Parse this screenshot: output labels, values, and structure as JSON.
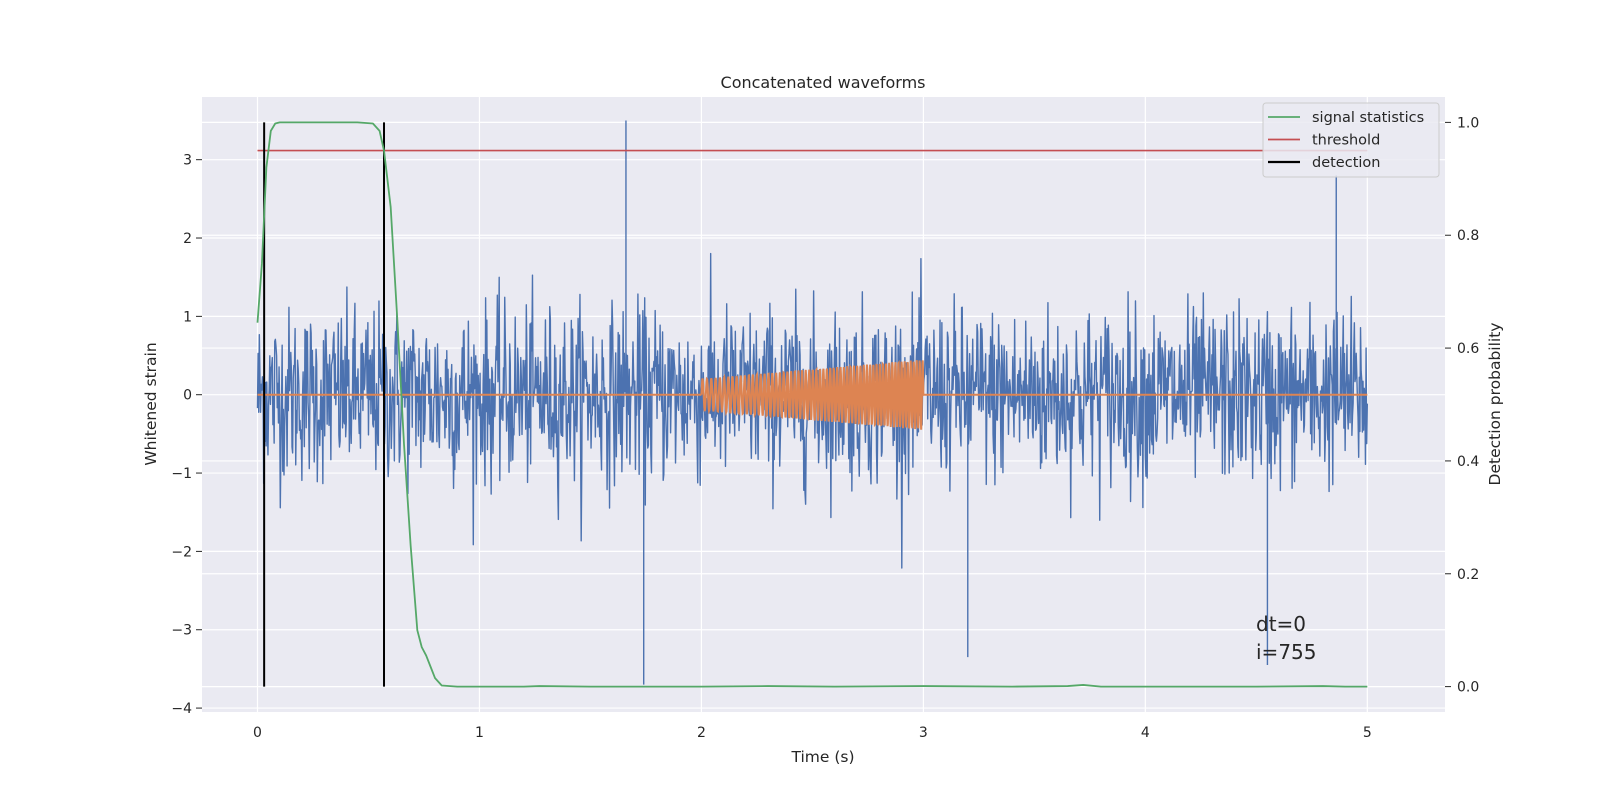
{
  "chart_data": {
    "type": "line",
    "title": "Concatenated waveforms",
    "xlabel": "Time (s)",
    "ylabel": "Whitened strain",
    "y2label": "Detection probability",
    "xlim": [
      -0.25,
      5.35
    ],
    "ylim": [
      -4.05,
      3.8
    ],
    "y2lim": [
      -0.045,
      1.045
    ],
    "xticks": [
      0,
      1,
      2,
      3,
      4,
      5
    ],
    "yticks": [
      -4,
      -3,
      -2,
      -1,
      0,
      1,
      2,
      3
    ],
    "y2ticks": [
      0.0,
      0.2,
      0.4,
      0.6,
      0.8,
      1.0
    ],
    "y2ticklabels": [
      "0.0",
      "0.2",
      "0.4",
      "0.6",
      "0.8",
      "1.0"
    ],
    "grid": true,
    "legend_position": "top-right",
    "legend": [
      {
        "label": "signal statistics",
        "color": "#55a868"
      },
      {
        "label": "threshold",
        "color": "#c44e52"
      },
      {
        "label": "detection",
        "color": "#000000"
      }
    ],
    "colors": {
      "noise": "#4c72b0",
      "injected": "#dd8452",
      "statistic": "#55a868",
      "threshold": "#c44e52",
      "detection": "#000000",
      "background": "#eaeaf2",
      "grid": "#ffffff"
    },
    "noise_series": {
      "x_range": [
        0,
        5
      ],
      "band_sigma": 0.55,
      "spikes": [
        {
          "x": 1.66,
          "y": 3.5
        },
        {
          "x": 1.74,
          "y": -3.7
        },
        {
          "x": 4.86,
          "y": 2.8
        },
        {
          "x": 3.2,
          "y": -3.35
        },
        {
          "x": 4.55,
          "y": -3.45
        }
      ]
    },
    "injected_signal": {
      "t_start": 2.0,
      "t_end": 3.0,
      "amp_start": 0.2,
      "amp_end": 0.45,
      "cycles": 50
    },
    "signal_statistics": {
      "x": [
        0.0,
        0.02,
        0.04,
        0.06,
        0.08,
        0.1,
        0.15,
        0.3,
        0.45,
        0.52,
        0.55,
        0.57,
        0.6,
        0.63,
        0.66,
        0.69,
        0.72,
        0.74,
        0.76,
        0.78,
        0.8,
        0.83,
        0.9,
        1.2,
        1.27,
        1.5,
        2.0,
        2.3,
        2.6,
        3.0,
        3.4,
        3.65,
        3.72,
        3.8,
        4.0,
        4.5,
        4.8,
        4.9,
        5.0
      ],
      "y": [
        0.645,
        0.75,
        0.92,
        0.985,
        0.998,
        1.0,
        1.0,
        1.0,
        1.0,
        0.998,
        0.985,
        0.95,
        0.85,
        0.65,
        0.43,
        0.25,
        0.1,
        0.07,
        0.055,
        0.035,
        0.015,
        0.002,
        0.0,
        0.0,
        0.001,
        0.0,
        0.0,
        0.001,
        0.0,
        0.001,
        0.0,
        0.001,
        0.003,
        0.0,
        0.0,
        0.0,
        0.001,
        0.0,
        0.0
      ]
    },
    "threshold": 0.95,
    "detections": [
      0.03,
      0.57
    ],
    "annotations": [
      "dt=0",
      "i=755"
    ]
  }
}
